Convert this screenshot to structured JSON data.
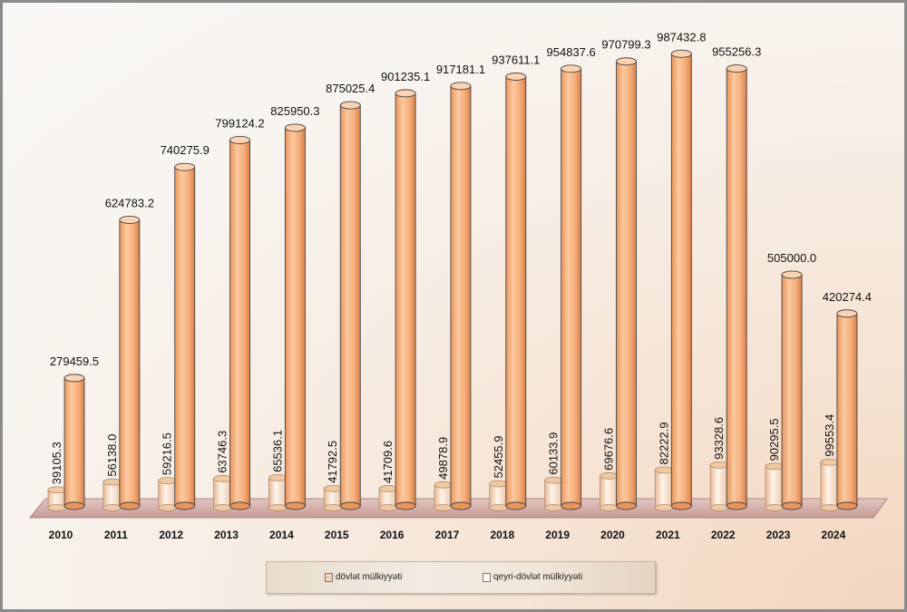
{
  "chart_data": {
    "type": "bar",
    "categories": [
      "2010",
      "2011",
      "2012",
      "2013",
      "2014",
      "2015",
      "2016",
      "2017",
      "2018",
      "2019",
      "2020",
      "2021",
      "2022",
      "2023",
      "2024"
    ],
    "series": [
      {
        "name": "dövlət mülkiyyəti",
        "values": [
          39105.3,
          56138.0,
          59216.5,
          63746.3,
          65536.1,
          41792.5,
          41709.6,
          49878.9,
          52455.9,
          60133.9,
          69676.6,
          82222.9,
          93328.6,
          90295.5,
          99553.4
        ],
        "labels": [
          "39105.3",
          "56138.0",
          "59216.5",
          "63746.3",
          "65536.1",
          "41792.5",
          "41709.6",
          "49878.9",
          "52455.9",
          "60133.9",
          "69676.6",
          "82222.9",
          "93328.6",
          "90295.5",
          "99553.4"
        ]
      },
      {
        "name": "qeyri-dövlət mülkiyyəti",
        "values": [
          279459.5,
          624783.2,
          740275.9,
          799124.2,
          825950.3,
          875025.4,
          901235.1,
          917181.1,
          937611.1,
          954837.6,
          970799.3,
          987432.8,
          955256.3,
          505000.0,
          420274.4
        ],
        "labels": [
          "279459.5",
          "624783.2",
          "740275.9",
          "799124.2",
          "825950.3",
          "875025.4",
          "901235.1",
          "917181.1",
          "937611.1",
          "954837.6",
          "970799.3",
          "987432.8",
          "955256.3",
          "505000.0",
          "420274.4"
        ]
      }
    ],
    "ylim": [
      0,
      1000000
    ],
    "grid": false,
    "legend_placement": "bottom",
    "colors": {
      "dovlet": "#f4cfae",
      "qeyri": "#f7b98a",
      "floor": "#d8b8b4"
    }
  },
  "legend": {
    "item1": "dövlət mülkiyyəti",
    "item2": "qeyri-dövlət mülkiyyəti"
  }
}
